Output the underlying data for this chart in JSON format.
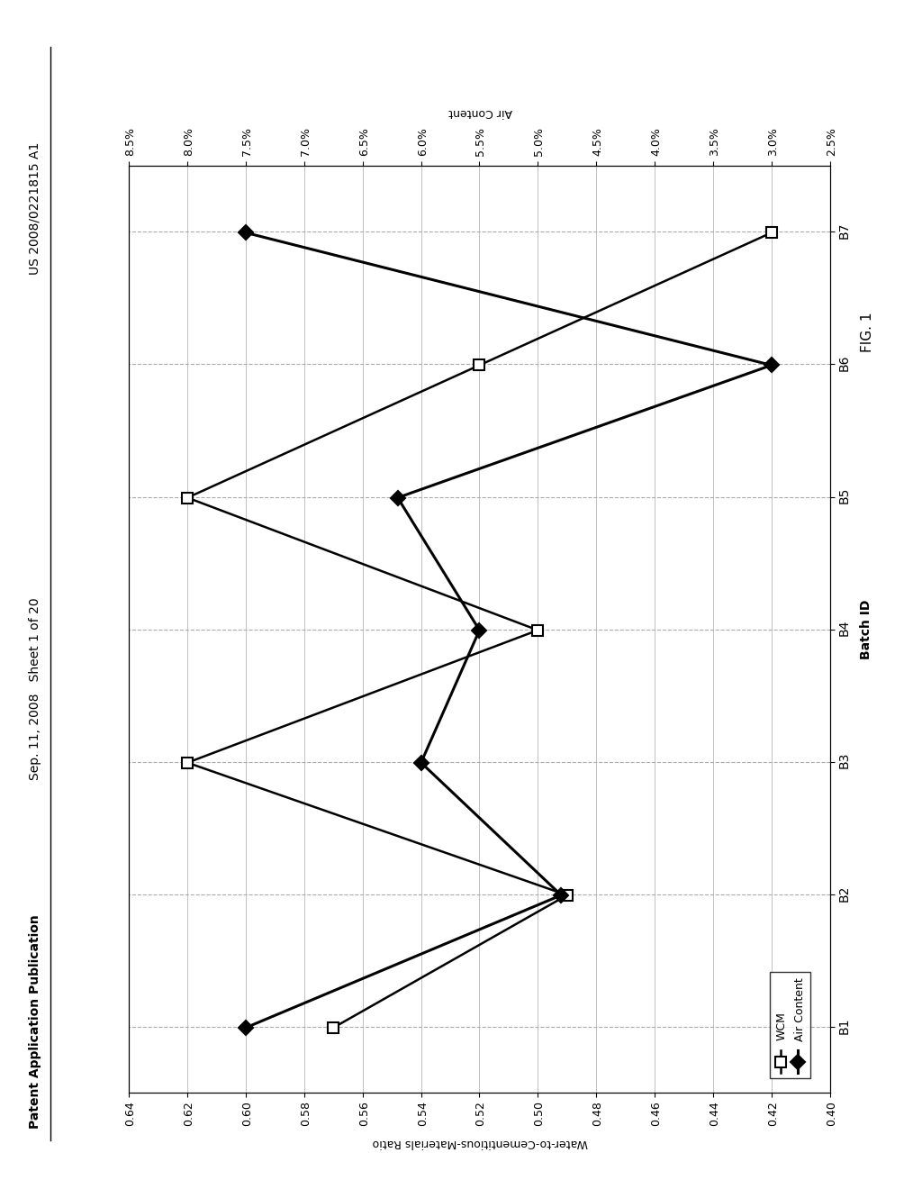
{
  "batches": [
    "B1",
    "B2",
    "B3",
    "B4",
    "B5",
    "B6",
    "B7"
  ],
  "wcm_values": [
    0.57,
    0.49,
    0.62,
    0.5,
    0.62,
    0.52,
    0.42
  ],
  "air_values": [
    7.5,
    4.8,
    6.0,
    5.5,
    6.2,
    3.0,
    7.5
  ],
  "wcm_ylim": [
    0.4,
    0.64
  ],
  "wcm_yticks": [
    0.4,
    0.42,
    0.44,
    0.46,
    0.48,
    0.5,
    0.52,
    0.54,
    0.56,
    0.58,
    0.6,
    0.62,
    0.64
  ],
  "air_ylim": [
    2.5,
    8.5
  ],
  "air_yticks": [
    2.5,
    3.0,
    3.5,
    4.0,
    4.5,
    5.0,
    5.5,
    6.0,
    6.5,
    7.0,
    7.5,
    8.0,
    8.5
  ],
  "air_yticklabels": [
    "2.5%",
    "3.0%",
    "3.5%",
    "4.0%",
    "4.5%",
    "5.0%",
    "5.5%",
    "6.0%",
    "6.5%",
    "7.0%",
    "7.5%",
    "8.0%",
    "8.5%"
  ],
  "xlabel": "Batch ID",
  "ylabel_left": "Water-to-Cementitious-Materials Ratio",
  "ylabel_right": "Air Content",
  "fig_title_left": "Patent Application Publication",
  "fig_title_center": "Sep. 11, 2008   Sheet 1 of 20",
  "fig_title_right": "US 2008/0221815 A1",
  "fig_caption": "FIG. 1",
  "legend_labels": [
    "WCM",
    "Air Content"
  ],
  "bg_color": "#ffffff"
}
